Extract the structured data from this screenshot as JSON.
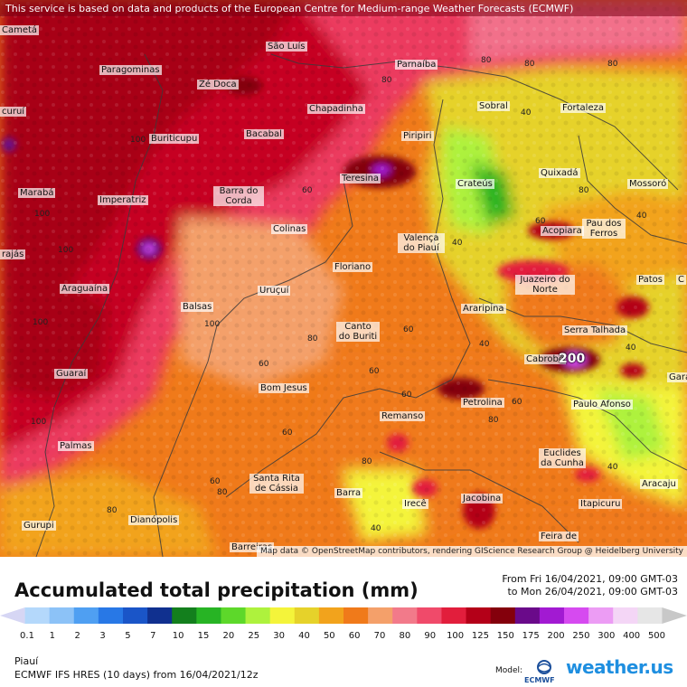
{
  "banner": "This service is based on data and products of the European Centre for Medium-range Weather Forecasts (ECMWF)",
  "attribution": "Map data © OpenStreetMap contributors, rendering GIScience Research Group @ Heidelberg University",
  "cities": {
    "sao_luis": "São Luís",
    "parnaiba": "Parnaíba",
    "fortaleza": "Fortaleza",
    "sobral": "Sobral",
    "ze_doca": "Zé Doca",
    "paragominas": "Paragominas",
    "chapadinha": "Chapadinha",
    "buriticupu": "Buriticupu",
    "bacabal": "Bacabal",
    "piripiri": "Piripiri",
    "teresina": "Teresina",
    "crateus": "Crateús",
    "quixada": "Quixadá",
    "mossoro": "Mossoró",
    "maraba": "Marabá",
    "imperatriz": "Imperatriz",
    "barra_do_corda": "Barra do Corda",
    "colinas": "Colinas",
    "valenca": "Valença do Piauí",
    "acopiara": "Acopiara",
    "pau_dos_ferros": "Pau dos Ferros",
    "floriano": "Floriano",
    "juazeiro": "Juazeiro do Norte",
    "patos": "Patos",
    "araguaina": "Araguaína",
    "urucui": "Uruçuí",
    "balsas": "Balsas",
    "araripina": "Araripina",
    "serra_talhada": "Serra Talhada",
    "canto_buriti": "Canto do Buriti",
    "cabrobo": "Cabrobó",
    "guarai": "Guaraí",
    "bom_jesus": "Bom Jesus",
    "petrolina": "Petrolina",
    "paulo_afonso": "Paulo Afonso",
    "remanso": "Remanso",
    "palmas": "Palmas",
    "euclides": "Euclides da Cunha",
    "santa_rita": "Santa Rita de Cássia",
    "aracaju": "Aracaju",
    "barra": "Barra",
    "ireco": "Irecê",
    "jacobina": "Jacobina",
    "itapicuru": "Itapicuru",
    "gurupi": "Gurupi",
    "dianopolis": "Dianópolis",
    "barreiras": "Barreiras",
    "feira": "Feira de",
    "cameta": "Cametá",
    "curui": "curuí",
    "araj": "rajás",
    "gara": "Gara",
    "joao_pessoa_fragment": "C"
  },
  "big_value": "200",
  "contour_80": "80",
  "contour_60": "60",
  "contour_40": "40",
  "contour_100": "100",
  "legend": {
    "title": "Accumulated total precipitation (mm)",
    "from": "From Fri 16/04/2021, 09:00 GMT-03",
    "to": "to Mon 26/04/2021, 09:00 GMT-03",
    "levels": [
      "0.1",
      "1",
      "2",
      "3",
      "5",
      "7",
      "10",
      "15",
      "20",
      "25",
      "30",
      "40",
      "50",
      "60",
      "70",
      "80",
      "90",
      "100",
      "125",
      "150",
      "175",
      "200",
      "250",
      "300",
      "400",
      "500"
    ],
    "colors": [
      "#d6d6f4",
      "#b4d8fb",
      "#8cc2f7",
      "#4f9ff2",
      "#2878e6",
      "#1a55c8",
      "#10308f",
      "#137f1d",
      "#27b424",
      "#5dd82a",
      "#aef23d",
      "#f4f43a",
      "#e6d22a",
      "#f2a31c",
      "#f07a1a",
      "#f4a06a",
      "#f27a8a",
      "#f04a6a",
      "#e21e3c",
      "#b40018",
      "#84000c",
      "#6a0a8a",
      "#a21ad2",
      "#d64af0",
      "#ec9cf4",
      "#f4d6f6",
      "#e6e6e6",
      "#c8c8c8"
    ]
  },
  "region": "Piauí",
  "model_run": "ECMWF IFS HRES (10 days) from 16/04/2021/12z",
  "model_label": "Model:",
  "ecmwf_label": "ECMWF",
  "brand": "weather.us"
}
